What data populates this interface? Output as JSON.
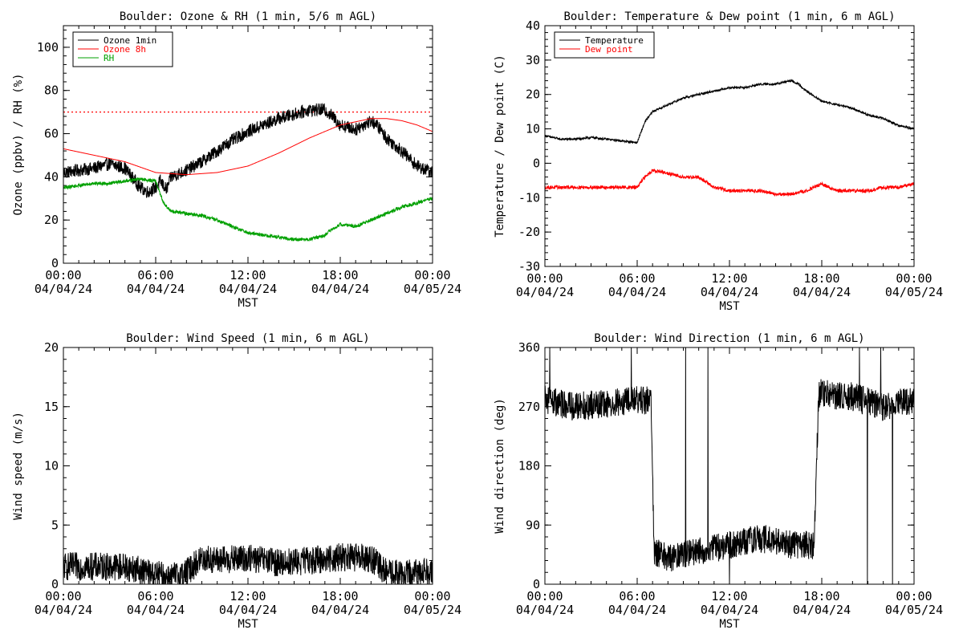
{
  "chart_data": [
    {
      "id": "ozone",
      "type": "line",
      "title": "Boulder: Ozone & RH (1 min, 5/6 m AGL)",
      "ylabel": "Ozone (ppbv) / RH (%)",
      "xlabel": "MST",
      "ylim": [
        0,
        110
      ],
      "yticks": [
        "0",
        "20",
        "40",
        "60",
        "80",
        "100"
      ],
      "ytick_values": [
        0,
        20,
        40,
        60,
        80,
        100
      ],
      "xlim": [
        0,
        24
      ],
      "xtick_values": [
        0,
        6,
        12,
        18,
        24
      ],
      "xticks": [
        "00:00",
        "06:00",
        "12:00",
        "18:00",
        "00:00"
      ],
      "xtick_dates": [
        "04/04/24",
        "04/04/24",
        "04/04/24",
        "04/04/24",
        "04/05/24"
      ],
      "reference_line": {
        "y": 70,
        "color": "#ff0000",
        "style": "dotted"
      },
      "legend": "top-left",
      "series": [
        {
          "name": "Ozone 1min",
          "color": "#000000",
          "noise": 3,
          "x": [
            0,
            1,
            2,
            3,
            4,
            5,
            5.5,
            6,
            6.3,
            6.7,
            7,
            8,
            9,
            10,
            11,
            12,
            13,
            14,
            15,
            16,
            17,
            17.5,
            18,
            19,
            20,
            20.5,
            21,
            22,
            23,
            24
          ],
          "y": [
            42,
            43,
            44,
            46,
            44,
            35,
            33,
            35,
            38,
            34,
            40,
            43,
            47,
            52,
            57,
            61,
            64,
            67,
            69,
            71,
            71,
            68,
            64,
            62,
            66,
            63,
            58,
            52,
            45,
            42
          ]
        },
        {
          "name": "Ozone 8h",
          "color": "#ff0000",
          "noise": 0,
          "x": [
            0,
            2,
            4,
            6,
            8,
            10,
            12,
            14,
            16,
            18,
            20,
            21,
            22,
            23,
            24
          ],
          "y": [
            53,
            50,
            47,
            42,
            41,
            42,
            45,
            51,
            58,
            64,
            67,
            67,
            66,
            64,
            61
          ]
        },
        {
          "name": "RH",
          "color": "#00a000",
          "noise": 0.8,
          "x": [
            0,
            1,
            2,
            3,
            4,
            5,
            6,
            6.5,
            7,
            8,
            9,
            10,
            11,
            12,
            13,
            14,
            15,
            16,
            17,
            17.5,
            18,
            19,
            20,
            21,
            22,
            23,
            24
          ],
          "y": [
            35,
            36,
            37,
            37,
            38,
            39,
            38,
            28,
            24,
            23,
            22,
            20,
            17,
            14,
            13,
            12,
            11,
            11,
            13,
            16,
            18,
            17,
            20,
            23,
            26,
            28,
            30
          ]
        }
      ]
    },
    {
      "id": "temp",
      "type": "line",
      "title": "Boulder: Temperature & Dew point (1 min, 6 m AGL)",
      "ylabel": "Temperature / Dew point (C)",
      "xlabel": "MST",
      "ylim": [
        -30,
        40
      ],
      "yticks": [
        "-30",
        "-20",
        "-10",
        "0",
        "10",
        "20",
        "30",
        "40"
      ],
      "ytick_values": [
        -30,
        -20,
        -10,
        0,
        10,
        20,
        30,
        40
      ],
      "xlim": [
        0,
        24
      ],
      "xtick_values": [
        0,
        6,
        12,
        18,
        24
      ],
      "xticks": [
        "00:00",
        "06:00",
        "12:00",
        "18:00",
        "00:00"
      ],
      "xtick_dates": [
        "04/04/24",
        "04/04/24",
        "04/04/24",
        "04/04/24",
        "04/05/24"
      ],
      "legend": "top-left",
      "series": [
        {
          "name": "Temperature",
          "color": "#000000",
          "noise": 0.3,
          "x": [
            0,
            1,
            2,
            3,
            4,
            5,
            6,
            6.5,
            7,
            8,
            9,
            10,
            11,
            12,
            13,
            14,
            15,
            16,
            16.5,
            17,
            18,
            19,
            20,
            21,
            22,
            23,
            24
          ],
          "y": [
            8,
            7,
            7,
            7.5,
            7,
            6.5,
            6,
            12,
            15,
            17,
            19,
            20,
            21,
            22,
            22,
            23,
            23,
            24,
            23,
            21,
            18,
            17,
            16,
            14,
            13,
            11,
            10
          ]
        },
        {
          "name": "Dew point",
          "color": "#ff0000",
          "noise": 0.5,
          "x": [
            0,
            2,
            4,
            6,
            6.5,
            7,
            8,
            9,
            10,
            11,
            12,
            14,
            15,
            16,
            17,
            18,
            19,
            20,
            21,
            22,
            23,
            24
          ],
          "y": [
            -7,
            -7,
            -7,
            -7,
            -4,
            -2,
            -3,
            -4,
            -4,
            -7,
            -8,
            -8,
            -9,
            -9,
            -8,
            -6,
            -8,
            -8,
            -8,
            -7,
            -7,
            -6
          ]
        }
      ]
    },
    {
      "id": "wspd",
      "type": "line",
      "title": "Boulder: Wind Speed (1 min, 6 m AGL)",
      "ylabel": "Wind speed (m/s)",
      "xlabel": "MST",
      "ylim": [
        0,
        20
      ],
      "yticks": [
        "0",
        "5",
        "10",
        "15",
        "20"
      ],
      "ytick_values": [
        0,
        5,
        10,
        15,
        20
      ],
      "xlim": [
        0,
        24
      ],
      "xtick_values": [
        0,
        6,
        12,
        18,
        24
      ],
      "xticks": [
        "00:00",
        "06:00",
        "12:00",
        "18:00",
        "00:00"
      ],
      "xtick_dates": [
        "04/04/24",
        "04/04/24",
        "04/04/24",
        "04/04/24",
        "04/05/24"
      ],
      "series": [
        {
          "name": "",
          "color": "#000000",
          "noise": 1.2,
          "clip_min": 0,
          "x": [
            0,
            2,
            4,
            6,
            7,
            8,
            9,
            10,
            12,
            14,
            16,
            18,
            20,
            21,
            22,
            23,
            24
          ],
          "y": [
            1.5,
            1.5,
            1.5,
            0.8,
            0.6,
            1.0,
            2.2,
            2.0,
            2.2,
            1.8,
            2.0,
            2.3,
            2.2,
            1.0,
            0.8,
            1.0,
            1.2
          ]
        }
      ]
    },
    {
      "id": "wdir",
      "type": "line",
      "title": "Boulder: Wind Direction (1 min, 6 m AGL)",
      "ylabel": "Wind direction (deg)",
      "xlabel": "MST",
      "ylim": [
        0,
        360
      ],
      "yticks": [
        "0",
        "90",
        "180",
        "270",
        "360"
      ],
      "ytick_values": [
        0,
        90,
        180,
        270,
        360
      ],
      "xlim": [
        0,
        24
      ],
      "xtick_values": [
        0,
        6,
        12,
        18,
        24
      ],
      "xticks": [
        "00:00",
        "06:00",
        "12:00",
        "18:00",
        "00:00"
      ],
      "xtick_dates": [
        "04/04/24",
        "04/04/24",
        "04/04/24",
        "04/04/24",
        "04/05/24"
      ],
      "series": [
        {
          "name": "",
          "color": "#000000",
          "noise": 22,
          "wrap": true,
          "clip_min": 0,
          "clip_max": 360,
          "x": [
            0,
            2,
            4,
            6,
            6.9,
            7.1,
            8,
            10,
            12,
            14,
            16,
            17.5,
            17.8,
            18,
            20,
            22,
            24
          ],
          "y": [
            280,
            270,
            275,
            280,
            280,
            50,
            40,
            50,
            60,
            70,
            60,
            60,
            290,
            290,
            285,
            270,
            280
          ]
        }
      ]
    }
  ]
}
